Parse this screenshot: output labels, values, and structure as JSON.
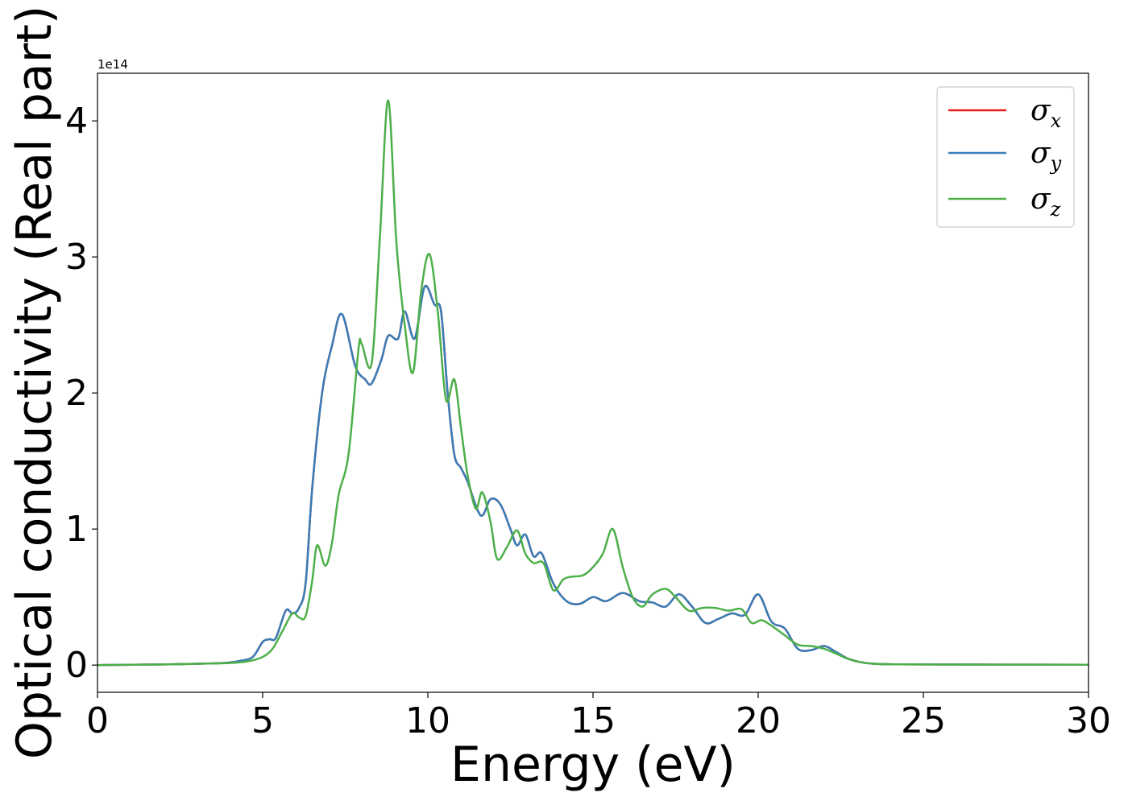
{
  "chart_data": {
    "type": "line",
    "xlabel": "Energy (eV)",
    "ylabel": "Optical conductivity (Real part)",
    "y_offset_label": "1e14",
    "xlim": [
      0,
      30
    ],
    "ylim": [
      -0.2,
      4.35
    ],
    "x_ticks": [
      0,
      5,
      10,
      15,
      20,
      25,
      30
    ],
    "y_ticks": [
      0,
      1,
      2,
      3,
      4
    ],
    "grid": false,
    "legend_position": "top-right",
    "colors": {
      "sigma_x": "#e41a1c",
      "sigma_y": "#377eb8",
      "sigma_z": "#4daf4a"
    },
    "series": [
      {
        "name": "σx",
        "legend_base": "σ",
        "legend_sub": "x",
        "color": "#e41a1c",
        "x": [
          0,
          2,
          3,
          3.8,
          4.3,
          4.7,
          5.0,
          5.2,
          5.4,
          5.7,
          5.9,
          6.1,
          6.3,
          6.5,
          6.8,
          7.1,
          7.4,
          7.8,
          8.1,
          8.3,
          8.6,
          8.8,
          9.1,
          9.3,
          9.6,
          9.9,
          10.2,
          10.4,
          10.6,
          10.8,
          11.0,
          11.2,
          11.6,
          11.9,
          12.2,
          12.5,
          12.7,
          12.95,
          13.2,
          13.45,
          13.8,
          14.2,
          14.6,
          15.0,
          15.4,
          15.9,
          16.4,
          16.8,
          17.2,
          17.6,
          18.0,
          18.4,
          18.8,
          19.2,
          19.6,
          20.0,
          20.4,
          20.8,
          21.2,
          21.6,
          22.0,
          22.4,
          22.8,
          23.5,
          25,
          30
        ],
        "y": [
          0,
          0.005,
          0.01,
          0.015,
          0.03,
          0.06,
          0.17,
          0.19,
          0.2,
          0.4,
          0.38,
          0.42,
          0.6,
          1.3,
          2.0,
          2.35,
          2.58,
          2.2,
          2.1,
          2.07,
          2.25,
          2.42,
          2.4,
          2.6,
          2.4,
          2.78,
          2.65,
          2.6,
          2.0,
          1.55,
          1.45,
          1.35,
          1.1,
          1.22,
          1.18,
          1.0,
          0.88,
          0.96,
          0.8,
          0.82,
          0.6,
          0.47,
          0.45,
          0.5,
          0.47,
          0.53,
          0.47,
          0.46,
          0.43,
          0.52,
          0.43,
          0.31,
          0.34,
          0.38,
          0.37,
          0.52,
          0.32,
          0.27,
          0.12,
          0.11,
          0.14,
          0.09,
          0.04,
          0.01,
          0.005,
          0.003
        ]
      },
      {
        "name": "σy",
        "legend_base": "σ",
        "legend_sub": "y",
        "color": "#377eb8",
        "x": [
          0,
          2,
          3,
          3.8,
          4.3,
          4.7,
          5.0,
          5.2,
          5.4,
          5.7,
          5.9,
          6.1,
          6.3,
          6.5,
          6.8,
          7.1,
          7.4,
          7.8,
          8.1,
          8.3,
          8.6,
          8.8,
          9.1,
          9.3,
          9.6,
          9.9,
          10.2,
          10.4,
          10.6,
          10.8,
          11.0,
          11.2,
          11.6,
          11.9,
          12.2,
          12.5,
          12.7,
          12.95,
          13.2,
          13.45,
          13.8,
          14.2,
          14.6,
          15.0,
          15.4,
          15.9,
          16.4,
          16.8,
          17.2,
          17.6,
          18.0,
          18.4,
          18.8,
          19.2,
          19.6,
          20.0,
          20.4,
          20.8,
          21.2,
          21.6,
          22.0,
          22.4,
          22.8,
          23.5,
          25,
          30
        ],
        "y": [
          0,
          0.005,
          0.01,
          0.015,
          0.03,
          0.06,
          0.17,
          0.19,
          0.2,
          0.4,
          0.38,
          0.42,
          0.6,
          1.3,
          2.0,
          2.35,
          2.58,
          2.2,
          2.1,
          2.07,
          2.25,
          2.42,
          2.4,
          2.6,
          2.4,
          2.78,
          2.65,
          2.6,
          2.0,
          1.55,
          1.45,
          1.35,
          1.1,
          1.22,
          1.18,
          1.0,
          0.88,
          0.96,
          0.8,
          0.82,
          0.6,
          0.47,
          0.45,
          0.5,
          0.47,
          0.53,
          0.47,
          0.46,
          0.43,
          0.52,
          0.43,
          0.31,
          0.34,
          0.38,
          0.37,
          0.52,
          0.32,
          0.27,
          0.12,
          0.11,
          0.14,
          0.09,
          0.04,
          0.01,
          0.005,
          0.003
        ]
      },
      {
        "name": "σz",
        "legend_base": "σ",
        "legend_sub": "z",
        "color": "#4daf4a",
        "x": [
          0,
          2,
          3,
          4.0,
          4.6,
          5.0,
          5.3,
          5.6,
          5.9,
          6.1,
          6.3,
          6.5,
          6.65,
          6.9,
          7.1,
          7.3,
          7.6,
          7.9,
          8.0,
          8.3,
          8.55,
          8.8,
          9.05,
          9.3,
          9.55,
          9.8,
          10.05,
          10.3,
          10.55,
          10.8,
          11.0,
          11.2,
          11.45,
          11.65,
          11.9,
          12.1,
          12.4,
          12.7,
          12.95,
          13.2,
          13.5,
          13.8,
          14.1,
          14.35,
          14.7,
          15.0,
          15.3,
          15.6,
          15.9,
          16.2,
          16.5,
          16.8,
          17.2,
          17.5,
          17.9,
          18.3,
          18.7,
          19.1,
          19.5,
          19.8,
          20.1,
          20.4,
          20.8,
          21.2,
          21.6,
          22.0,
          22.4,
          22.8,
          23.5,
          25,
          30
        ],
        "y": [
          0,
          0.005,
          0.01,
          0.015,
          0.03,
          0.06,
          0.12,
          0.25,
          0.38,
          0.35,
          0.36,
          0.62,
          0.88,
          0.73,
          0.9,
          1.25,
          1.55,
          2.32,
          2.36,
          2.22,
          3.15,
          4.15,
          3.1,
          2.5,
          2.15,
          2.75,
          3.02,
          2.6,
          1.95,
          2.1,
          1.75,
          1.4,
          1.15,
          1.27,
          1.05,
          0.78,
          0.87,
          0.99,
          0.82,
          0.75,
          0.75,
          0.55,
          0.63,
          0.65,
          0.66,
          0.72,
          0.82,
          1.0,
          0.72,
          0.5,
          0.43,
          0.52,
          0.56,
          0.5,
          0.4,
          0.42,
          0.42,
          0.4,
          0.41,
          0.31,
          0.33,
          0.29,
          0.22,
          0.15,
          0.14,
          0.12,
          0.08,
          0.04,
          0.01,
          0.005,
          0.003
        ]
      }
    ]
  }
}
